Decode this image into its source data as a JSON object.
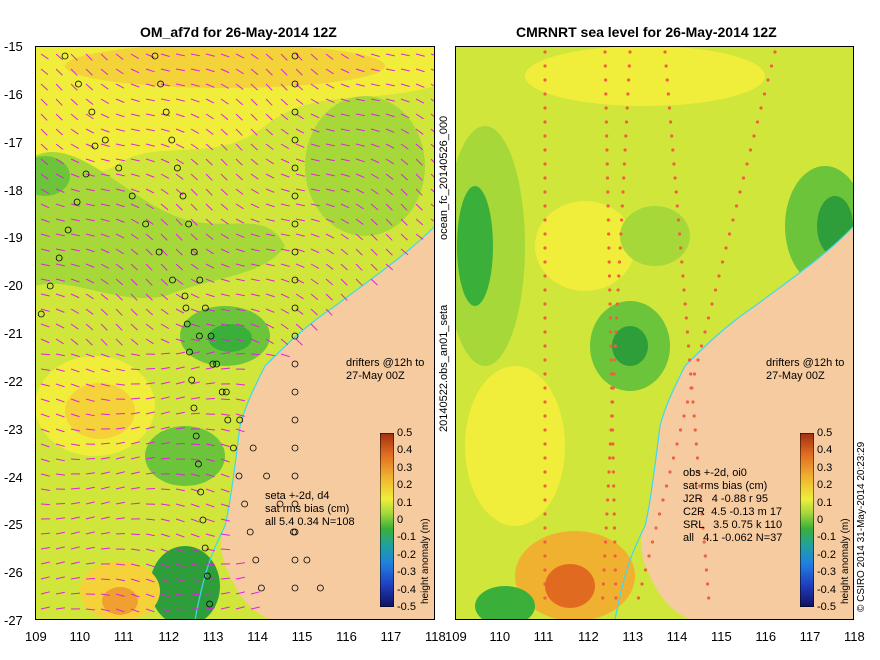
{
  "left_panel": {
    "title": "OM_af7d for 26-May-2014 12Z",
    "y_ticks": [
      "-15",
      "-16",
      "-17",
      "-18",
      "-19",
      "-20",
      "-21",
      "-22",
      "-23",
      "-24",
      "-25",
      "-26",
      "-27"
    ],
    "x_ticks": [
      "109",
      "110",
      "111",
      "112",
      "113",
      "114",
      "115",
      "116",
      "117",
      "118"
    ],
    "drifter_note": "drifters @12h to\n27-May 00Z",
    "stats_note": "seta +-2d, d4\nsat rms bias (cm)\nall 5.4 0.34 N=108",
    "side_label": "20140522.obs_an01_seta",
    "colorbar_ticks": [
      "0.5",
      "0.4",
      "0.3",
      "0.2",
      "0.1",
      "0",
      "-0.1",
      "-0.2",
      "-0.3",
      "-0.4",
      "-0.5"
    ],
    "colorbar_label": "height anomaly (m)"
  },
  "right_panel": {
    "title": "CMRNRT sea level  for 26-May-2014 12Z",
    "x_ticks": [
      "109",
      "110",
      "111",
      "112",
      "113",
      "114",
      "115",
      "116",
      "117",
      "118"
    ],
    "drifter_note": "drifters @12h to\n27-May 00Z",
    "stats_note": "obs +-2d, oi0\nsat rms bias (cm)\nJ2R   4 -0.88 r 95\nC2R  4.5 -0.13 m 17\nSRL   3.5 0.75 k 110\nall   4.1 -0.062 N=37",
    "side_label": "ocean_fc_20140526_000",
    "colorbar_ticks": [
      "0.5",
      "0.4",
      "0.3",
      "0.2",
      "0.1",
      "0",
      "-0.1",
      "-0.2",
      "-0.3",
      "-0.4",
      "-0.5"
    ],
    "colorbar_label": "height anomaly (m)"
  },
  "credit": "© CSIRO 2014   31-May-2014 20:23:29",
  "colors": {
    "land": "#f7cba0",
    "deep_green": "#2e9e3a",
    "green": "#6cc43a",
    "light_green": "#a6d83a",
    "yellow_green": "#d0e63a",
    "yellow": "#f0ee3a",
    "orange": "#f0a030",
    "arrow": "#e020e0",
    "coast_line": "#40d8f0"
  }
}
